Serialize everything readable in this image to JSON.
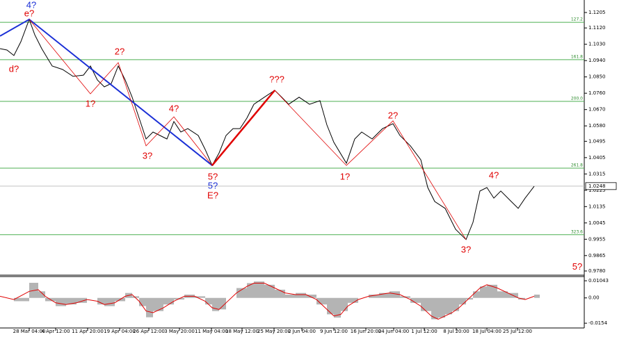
{
  "chart_data": {
    "type": "line",
    "xlim": [
      -42,
      798
    ],
    "xticks": [
      {
        "value": 0,
        "label": "28 Mar 04:00"
      },
      {
        "value": 38,
        "label": "4 Apr 12:00"
      },
      {
        "value": 84,
        "label": "11 Apr 20:00"
      },
      {
        "value": 130,
        "label": "19 Apr 04:00"
      },
      {
        "value": 172,
        "label": "26 Apr 12:00"
      },
      {
        "value": 216,
        "label": "3 May 20:00"
      },
      {
        "value": 262,
        "label": "11 May 04:00"
      },
      {
        "value": 306,
        "label": "18 May 12:00"
      },
      {
        "value": 352,
        "label": "25 May 20:00"
      },
      {
        "value": 392,
        "label": "2 Jun 04:00"
      },
      {
        "value": 438,
        "label": "9 Jun 12:00"
      },
      {
        "value": 484,
        "label": "16 Jun 20:00"
      },
      {
        "value": 524,
        "label": "24 Jun 04:00"
      },
      {
        "value": 568,
        "label": "1 Jul 12:00"
      },
      {
        "value": 614,
        "label": "8 Jul 20:00"
      },
      {
        "value": 658,
        "label": "18 Jul 04:00"
      },
      {
        "value": 702,
        "label": "25 Jul 12:00"
      }
    ],
    "ylim": [
      0.9757,
      1.1274
    ],
    "yticks": [
      1.1205,
      {
        "value": 1.112,
        "label": "1.1120"
      },
      {
        "value": 1.103,
        "label": "1.1030"
      },
      {
        "value": 1.094,
        "label": "1.0940"
      },
      {
        "value": 1.085,
        "label": "1.0850"
      },
      {
        "value": 1.076,
        "label": "1.0760"
      },
      {
        "value": 1.067,
        "label": "1.0670"
      },
      {
        "value": 1.058,
        "label": "1.0580"
      },
      1.0495,
      1.0405,
      1.0315,
      1.0225,
      1.0135,
      1.0045,
      0.9955,
      0.9865,
      {
        "value": 0.978,
        "label": "0.9780"
      }
    ],
    "color": "#000000",
    "x": [
      -42,
      -32,
      -22,
      -12,
      0,
      8,
      18,
      33,
      48,
      63,
      78,
      88,
      98,
      108,
      118,
      128,
      138,
      148,
      158,
      168,
      178,
      188,
      198,
      208,
      218,
      228,
      243,
      253,
      263,
      273,
      283,
      293,
      303,
      313,
      323,
      338,
      353,
      363,
      373,
      388,
      403,
      418,
      428,
      438,
      456,
      468,
      478,
      493,
      508,
      523,
      533,
      548,
      563,
      573,
      583,
      598,
      613,
      628,
      638,
      648,
      658,
      668,
      678,
      693,
      703,
      713,
      726
    ],
    "values": [
      1.1006,
      1.0998,
      1.0968,
      1.1044,
      1.1167,
      1.1082,
      1.1006,
      1.091,
      1.0891,
      1.0853,
      1.086,
      1.091,
      1.0833,
      1.0795,
      1.0814,
      1.091,
      1.0833,
      1.0738,
      1.0623,
      1.0508,
      1.0546,
      1.0527,
      1.0508,
      1.0604,
      1.0546,
      1.0565,
      1.0527,
      1.045,
      1.0362,
      1.0431,
      1.0527,
      1.0565,
      1.0565,
      1.0623,
      1.0699,
      1.0738,
      1.0776,
      1.0738,
      1.0699,
      1.0738,
      1.0699,
      1.0719,
      1.0585,
      1.0489,
      1.0374,
      1.0508,
      1.0546,
      1.0508,
      1.0565,
      1.0592,
      1.0527,
      1.047,
      1.0393,
      1.024,
      1.0163,
      1.0125,
      1.001,
      0.9953,
      1.0048,
      1.0221,
      1.024,
      1.0182,
      1.0221,
      1.0163,
      1.0125,
      1.0182,
      1.0247
    ],
    "last_price": 1.0248,
    "last_price_color": "#c0c0c0",
    "fib_color": "#4caf50",
    "fib_levels": [
      {
        "label": "127.2",
        "value": 1.1151
      },
      {
        "label": "161.8",
        "value": 1.0945
      },
      {
        "label": "200.0",
        "value": 1.0715
      },
      {
        "label": "261.8",
        "value": 1.0347
      },
      {
        "label": "323.6",
        "value": 0.998
      }
    ],
    "waves": [
      {
        "color": "#1a2fd6",
        "width": 2,
        "x": [
          -42,
          0,
          263
        ],
        "values": [
          1.1075,
          1.1167,
          1.0362
        ]
      },
      {
        "color": "#e00000",
        "width": 2.5,
        "x": [
          263,
          353
        ],
        "values": [
          1.0362,
          1.0776
        ]
      },
      {
        "color": "#e00000",
        "width": 0.8,
        "x": [
          0,
          88,
          128,
          168,
          208,
          263
        ],
        "values": [
          1.1167,
          1.0757,
          1.0929,
          1.047,
          1.063,
          1.0362
        ]
      },
      {
        "color": "#e00000",
        "width": 0.8,
        "x": [
          353,
          456,
          523,
          628
        ],
        "values": [
          1.0776,
          1.0362,
          1.0608,
          0.9953
        ]
      }
    ],
    "annotations": [
      {
        "text": "4?",
        "x": 3,
        "y": 1.1243,
        "color": "#1a2fd6"
      },
      {
        "text": "e?",
        "x": 0,
        "y": 1.1197,
        "color": "#e00000"
      },
      {
        "text": "d?",
        "x": -22,
        "y": 1.0891,
        "color": "#e00000"
      },
      {
        "text": "2?",
        "x": 130,
        "y": 1.0987,
        "color": "#e00000"
      },
      {
        "text": "1?",
        "x": 88,
        "y": 1.0699,
        "color": "#e00000"
      },
      {
        "text": "4?",
        "x": 208,
        "y": 1.0673,
        "color": "#e00000"
      },
      {
        "text": "3?",
        "x": 170,
        "y": 1.0412,
        "color": "#e00000"
      },
      {
        "text": "5?",
        "x": 264,
        "y": 1.0297,
        "color": "#e00000"
      },
      {
        "text": "5?",
        "x": 264,
        "y": 1.0247,
        "color": "#1a2fd6"
      },
      {
        "text": "E?",
        "x": 264,
        "y": 1.0194,
        "color": "#e00000"
      },
      {
        "text": "???",
        "x": 356,
        "y": 1.0834,
        "color": "#e00000"
      },
      {
        "text": "2?",
        "x": 523,
        "y": 1.0634,
        "color": "#e00000"
      },
      {
        "text": "1?",
        "x": 454,
        "y": 1.0297,
        "color": "#e00000"
      },
      {
        "text": "4?",
        "x": 668,
        "y": 1.0305,
        "color": "#e00000"
      },
      {
        "text": "3?",
        "x": 628,
        "y": 0.9895,
        "color": "#e00000"
      },
      {
        "text": "5?",
        "x": 788,
        "y": 0.98,
        "color": "#e00000"
      }
    ],
    "macd": {
      "ylim": [
        -0.0183,
        0.013
      ],
      "yticks": [
        0.01043,
        {
          "value": 0,
          "label": "0.00"
        },
        -0.0154
      ],
      "hist_color": "#b4b4b4",
      "signal_color": "#e00000",
      "x": [
        -42,
        -22,
        0,
        13,
        23,
        38,
        53,
        68,
        83,
        98,
        108,
        123,
        138,
        148,
        158,
        168,
        178,
        193,
        208,
        223,
        238,
        253,
        263,
        273,
        283,
        298,
        313,
        323,
        338,
        353,
        368,
        383,
        398,
        413,
        428,
        438,
        448,
        458,
        473,
        488,
        503,
        518,
        533,
        548,
        563,
        578,
        588,
        598,
        608,
        618,
        628,
        638,
        648,
        658,
        673,
        688,
        703,
        713,
        726
      ],
      "histogram": [
        0,
        -0.002,
        0.0092,
        0.004,
        -0.002,
        -0.005,
        -0.004,
        -0.003,
        0,
        -0.004,
        -0.005,
        -0.002,
        0.003,
        0.001,
        -0.005,
        -0.0118,
        -0.008,
        -0.004,
        -0.001,
        0.002,
        0.001,
        -0.004,
        -0.008,
        -0.007,
        0,
        0.006,
        0.009,
        0.01,
        0.008,
        0.005,
        0.002,
        0.003,
        0.002,
        -0.004,
        -0.01,
        -0.012,
        -0.008,
        -0.003,
        0,
        0.002,
        0.003,
        0.004,
        0.001,
        -0.003,
        -0.008,
        -0.013,
        -0.012,
        -0.01,
        -0.008,
        -0.004,
        -0.001,
        0.004,
        0.007,
        0.008,
        0.004,
        0.003,
        -0.001,
        0,
        0.002
      ],
      "signal": [
        0.001,
        -0.001,
        0.004,
        0.005,
        0.001,
        -0.003,
        -0.004,
        -0.003,
        -0.001,
        -0.002,
        -0.004,
        -0.003,
        0.001,
        0.002,
        -0.002,
        -0.008,
        -0.009,
        -0.006,
        -0.002,
        0.001,
        0.001,
        -0.002,
        -0.006,
        -0.007,
        -0.003,
        0.003,
        0.007,
        0.009,
        0.009,
        0.006,
        0.003,
        0.002,
        0.002,
        -0.001,
        -0.007,
        -0.011,
        -0.01,
        -0.005,
        -0.001,
        0.001,
        0.002,
        0.003,
        0.002,
        -0.001,
        -0.005,
        -0.011,
        -0.013,
        -0.011,
        -0.009,
        -0.006,
        -0.002,
        0.002,
        0.006,
        0.008,
        0.006,
        0.003,
        0,
        -0.001,
        0.001
      ]
    }
  }
}
